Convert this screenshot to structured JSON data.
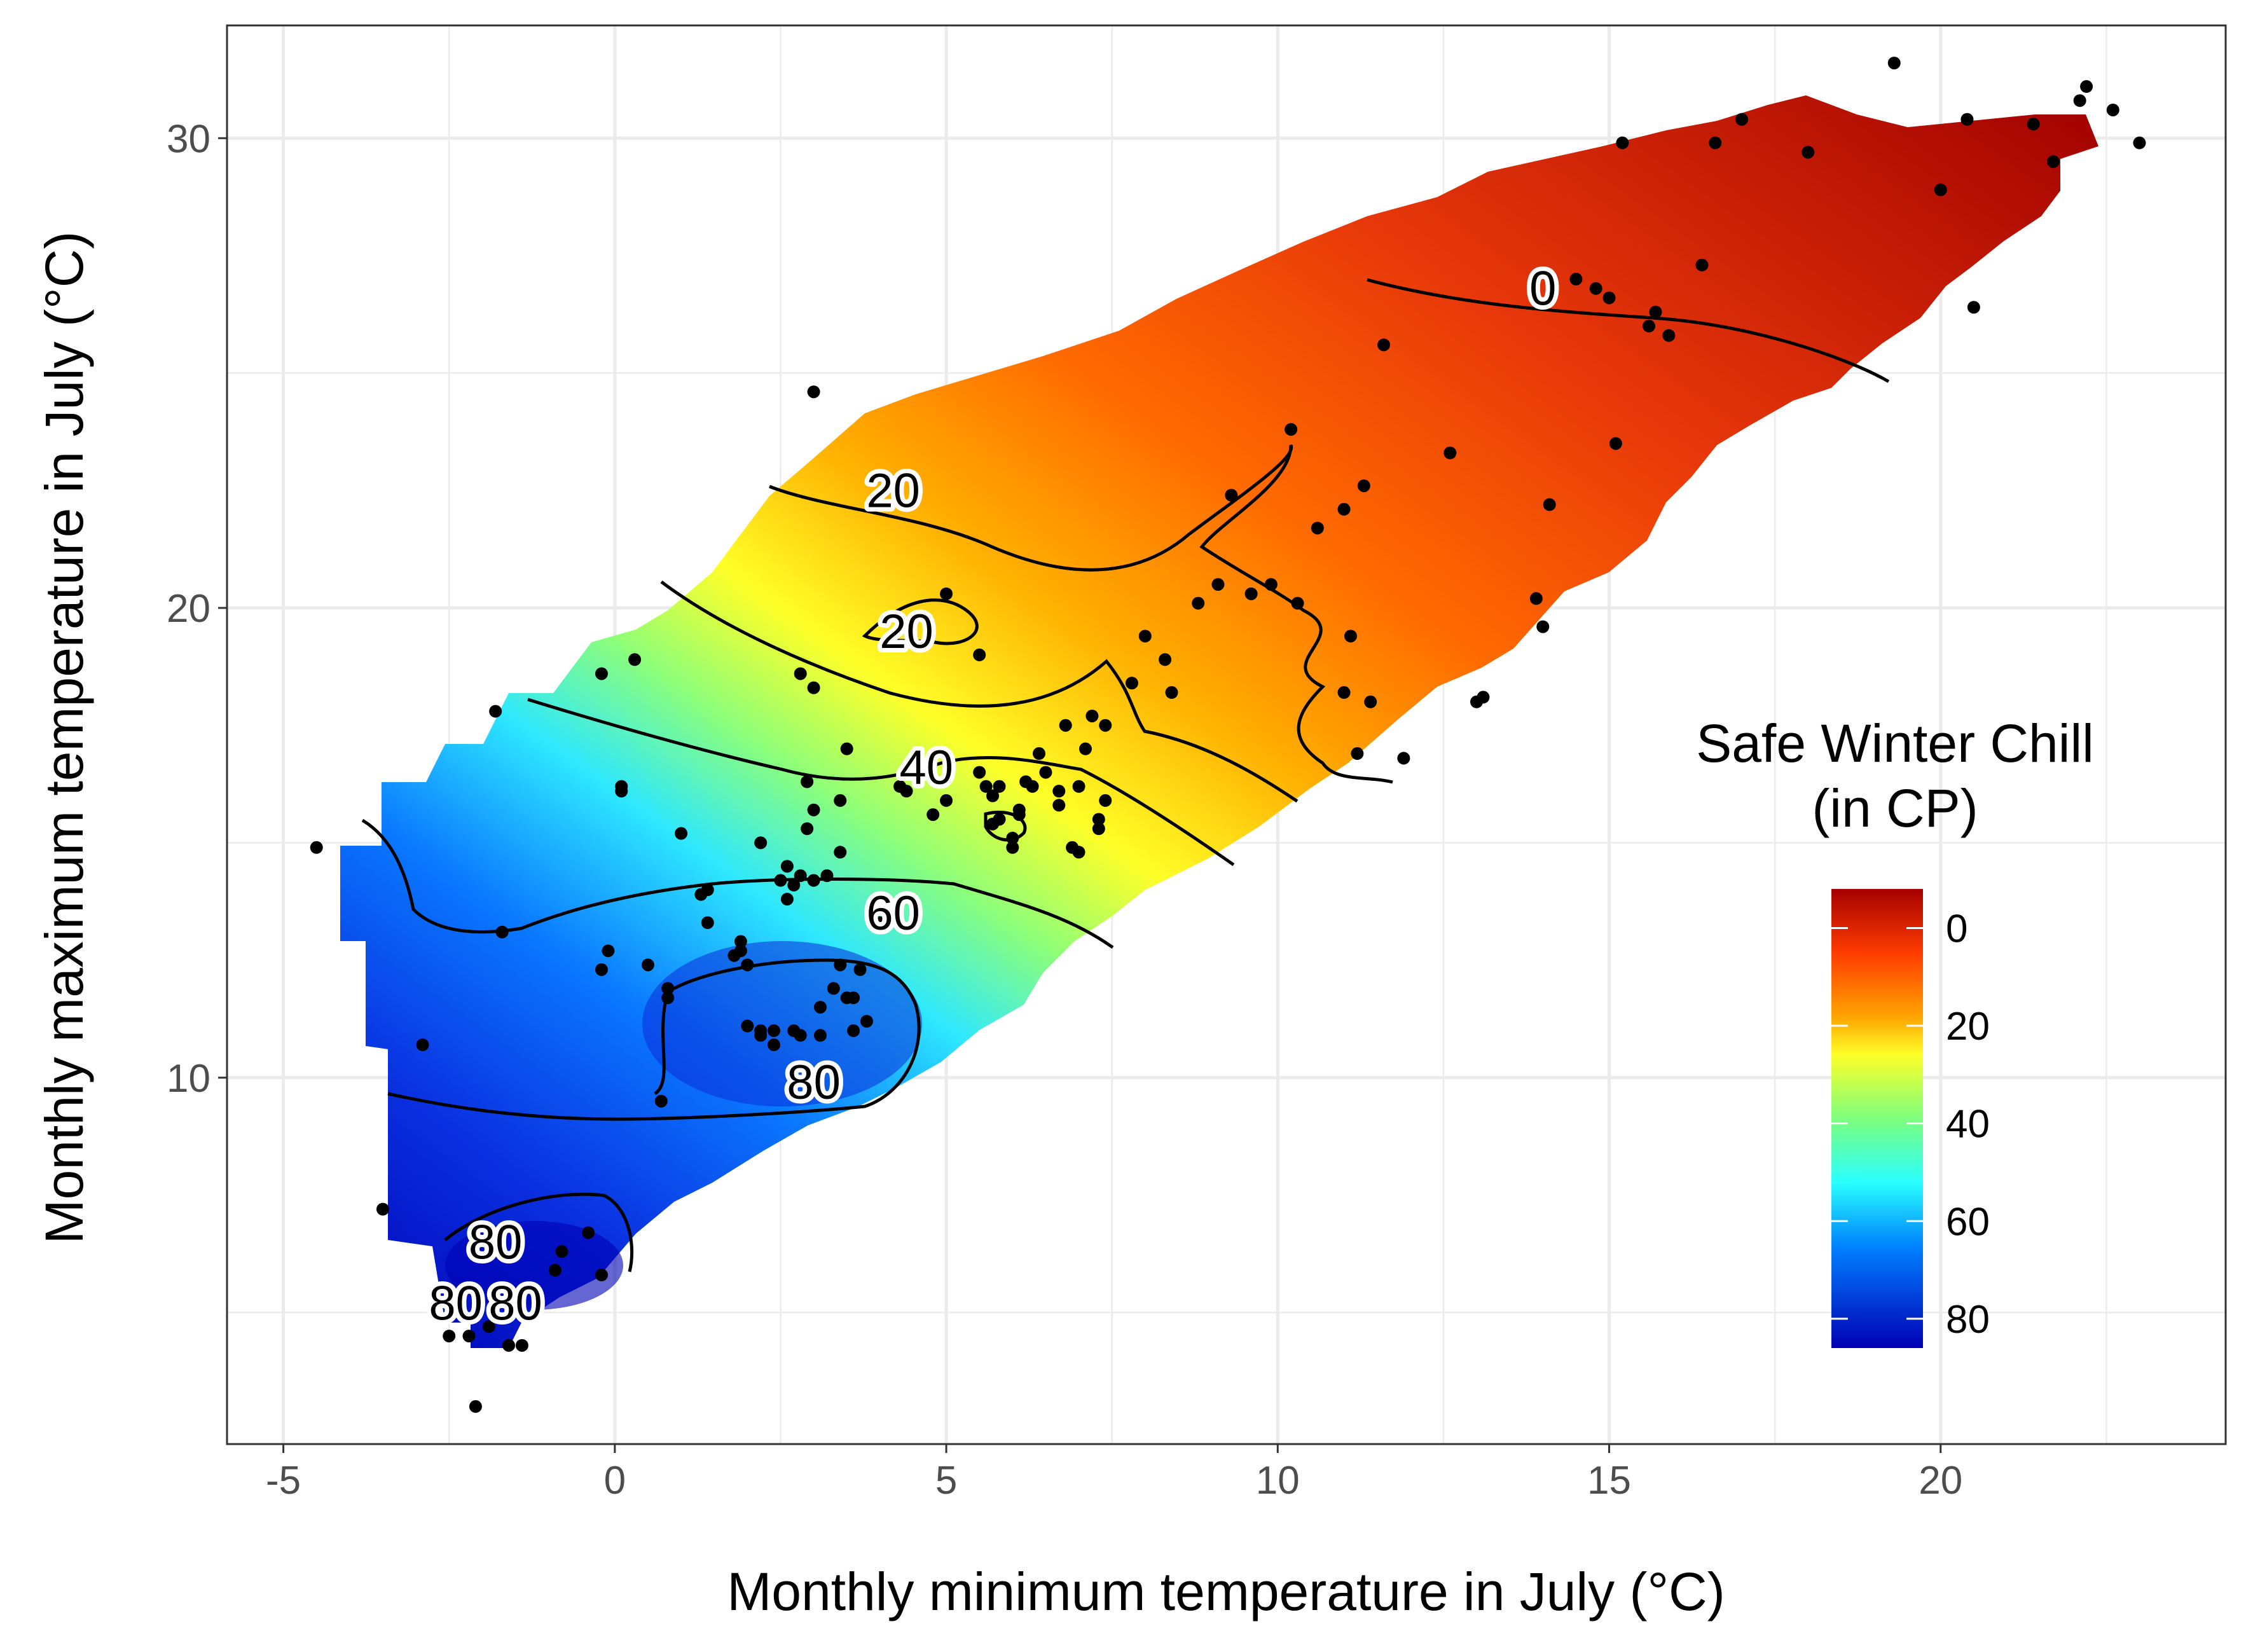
{
  "chart_data": {
    "type": "contour",
    "xlabel": "Monthly minimum temperature in July (°C)",
    "ylabel": "Monthly maximum temperature in July (°C)",
    "xlim": [
      -5.85,
      24.3
    ],
    "ylim": [
      2.2,
      32.4
    ],
    "x_ticks": [
      -5,
      0,
      5,
      10,
      15,
      20
    ],
    "x_tick_labels": [
      "-5",
      "0",
      "5",
      "10",
      "15",
      "20"
    ],
    "y_ticks": [
      10,
      20,
      30
    ],
    "y_tick_labels": [
      "10",
      "20",
      "30"
    ],
    "grid": true,
    "legend": {
      "title_line1": "Safe Winter Chill",
      "title_line2": "(in CP)",
      "placement": "right",
      "breaks": [
        0,
        20,
        40,
        60,
        80
      ],
      "break_labels": [
        "0",
        "20",
        "40",
        "60",
        "80"
      ],
      "range": [
        -8,
        86
      ],
      "colors": [
        "#a50000",
        "#ff3c00",
        "#ffa500",
        "#ffff28",
        "#7dff7d",
        "#28ffff",
        "#0080ff",
        "#0000b4"
      ]
    },
    "contour_labels": [
      {
        "text": "0",
        "x": 14.0,
        "y": 26.8
      },
      {
        "text": "20",
        "x": 4.2,
        "y": 22.5
      },
      {
        "text": "20",
        "x": 4.4,
        "y": 19.5
      },
      {
        "text": "40",
        "x": 4.7,
        "y": 16.6
      },
      {
        "text": "60",
        "x": 4.2,
        "y": 13.5
      },
      {
        "text": "80",
        "x": 3.0,
        "y": 9.9
      },
      {
        "text": "80",
        "x": -1.8,
        "y": 6.5
      },
      {
        "text": "80",
        "x": -2.4,
        "y": 5.2
      },
      {
        "text": "80",
        "x": -1.5,
        "y": 5.2
      }
    ],
    "points": [
      [
        -4.5,
        14.9
      ],
      [
        -3.5,
        7.2
      ],
      [
        -2.9,
        10.7
      ],
      [
        -2.5,
        4.5
      ],
      [
        -2.2,
        4.5
      ],
      [
        -2.1,
        3.0
      ],
      [
        -1.9,
        4.7
      ],
      [
        -1.8,
        17.8
      ],
      [
        -1.7,
        13.1
      ],
      [
        -1.6,
        4.3
      ],
      [
        -1.4,
        4.3
      ],
      [
        -0.9,
        5.9
      ],
      [
        -0.8,
        6.3
      ],
      [
        -0.4,
        6.7
      ],
      [
        -0.2,
        5.8
      ],
      [
        -0.2,
        18.6
      ],
      [
        -0.2,
        12.3
      ],
      [
        -0.1,
        12.7
      ],
      [
        0.1,
        16.1
      ],
      [
        0.1,
        16.2
      ],
      [
        0.3,
        18.9
      ],
      [
        0.5,
        12.4
      ],
      [
        0.7,
        9.5
      ],
      [
        0.8,
        11.9
      ],
      [
        0.8,
        11.7
      ],
      [
        1.0,
        15.2
      ],
      [
        1.3,
        13.9
      ],
      [
        1.4,
        14.0
      ],
      [
        1.4,
        13.3
      ],
      [
        1.8,
        12.6
      ],
      [
        1.9,
        12.7
      ],
      [
        1.9,
        12.9
      ],
      [
        2.0,
        11.1
      ],
      [
        2.0,
        12.4
      ],
      [
        2.2,
        11.0
      ],
      [
        2.2,
        15.0
      ],
      [
        2.2,
        10.9
      ],
      [
        2.4,
        11.0
      ],
      [
        2.4,
        10.7
      ],
      [
        2.5,
        14.2
      ],
      [
        2.6,
        14.5
      ],
      [
        2.6,
        13.8
      ],
      [
        2.7,
        14.1
      ],
      [
        2.7,
        11.0
      ],
      [
        2.8,
        14.3
      ],
      [
        2.8,
        18.6
      ],
      [
        2.8,
        10.9
      ],
      [
        2.9,
        16.3
      ],
      [
        2.9,
        15.3
      ],
      [
        3.0,
        24.6
      ],
      [
        3.0,
        18.3
      ],
      [
        3.0,
        14.2
      ],
      [
        3.0,
        15.7
      ],
      [
        3.1,
        11.5
      ],
      [
        3.1,
        10.9
      ],
      [
        3.2,
        14.3
      ],
      [
        3.3,
        11.9
      ],
      [
        3.4,
        14.8
      ],
      [
        3.4,
        12.4
      ],
      [
        3.4,
        15.9
      ],
      [
        3.5,
        11.7
      ],
      [
        3.5,
        17.0
      ],
      [
        3.6,
        11.0
      ],
      [
        3.6,
        11.7
      ],
      [
        3.7,
        12.3
      ],
      [
        3.8,
        11.2
      ],
      [
        4.0,
        13.3
      ],
      [
        4.3,
        16.2
      ],
      [
        4.4,
        16.1
      ],
      [
        4.8,
        15.6
      ],
      [
        5.0,
        20.3
      ],
      [
        5.0,
        15.9
      ],
      [
        5.5,
        19.0
      ],
      [
        5.5,
        16.5
      ],
      [
        5.6,
        16.2
      ],
      [
        5.7,
        16.0
      ],
      [
        5.7,
        15.4
      ],
      [
        5.8,
        16.2
      ],
      [
        5.8,
        15.5
      ],
      [
        6.0,
        15.1
      ],
      [
        6.0,
        14.9
      ],
      [
        6.1,
        15.6
      ],
      [
        6.1,
        15.7
      ],
      [
        6.2,
        16.3
      ],
      [
        6.3,
        16.2
      ],
      [
        6.4,
        16.9
      ],
      [
        6.5,
        16.5
      ],
      [
        6.7,
        15.8
      ],
      [
        6.7,
        16.1
      ],
      [
        6.8,
        17.5
      ],
      [
        6.9,
        14.9
      ],
      [
        7.0,
        14.8
      ],
      [
        7.0,
        16.2
      ],
      [
        7.1,
        17.0
      ],
      [
        7.2,
        17.7
      ],
      [
        7.3,
        15.3
      ],
      [
        7.3,
        15.5
      ],
      [
        7.4,
        17.5
      ],
      [
        7.4,
        15.9
      ],
      [
        7.8,
        18.4
      ],
      [
        8.0,
        19.4
      ],
      [
        8.3,
        18.9
      ],
      [
        8.4,
        18.2
      ],
      [
        8.8,
        20.1
      ],
      [
        9.1,
        20.5
      ],
      [
        9.3,
        22.4
      ],
      [
        9.6,
        20.3
      ],
      [
        9.9,
        20.5
      ],
      [
        10.2,
        23.8
      ],
      [
        10.3,
        20.1
      ],
      [
        10.6,
        21.7
      ],
      [
        11.0,
        18.2
      ],
      [
        11.0,
        22.1
      ],
      [
        11.1,
        19.4
      ],
      [
        11.2,
        16.9
      ],
      [
        11.3,
        22.6
      ],
      [
        11.4,
        18.0
      ],
      [
        11.6,
        25.6
      ],
      [
        11.9,
        16.8
      ],
      [
        12.6,
        23.3
      ],
      [
        13.0,
        18.0
      ],
      [
        13.1,
        18.1
      ],
      [
        13.9,
        20.2
      ],
      [
        14.0,
        19.6
      ],
      [
        14.1,
        22.2
      ],
      [
        14.5,
        27.0
      ],
      [
        14.8,
        26.8
      ],
      [
        15.0,
        26.6
      ],
      [
        15.1,
        23.5
      ],
      [
        15.2,
        29.9
      ],
      [
        15.6,
        26.0
      ],
      [
        15.7,
        26.3
      ],
      [
        15.9,
        25.8
      ],
      [
        16.4,
        27.3
      ],
      [
        16.6,
        29.9
      ],
      [
        17.0,
        30.4
      ],
      [
        18.0,
        29.7
      ],
      [
        19.3,
        31.6
      ],
      [
        20.0,
        28.9
      ],
      [
        20.4,
        30.4
      ],
      [
        20.5,
        26.4
      ],
      [
        21.4,
        30.3
      ],
      [
        21.7,
        29.5
      ],
      [
        22.1,
        30.8
      ],
      [
        22.2,
        31.1
      ],
      [
        22.6,
        30.6
      ],
      [
        23.0,
        29.9
      ]
    ]
  }
}
